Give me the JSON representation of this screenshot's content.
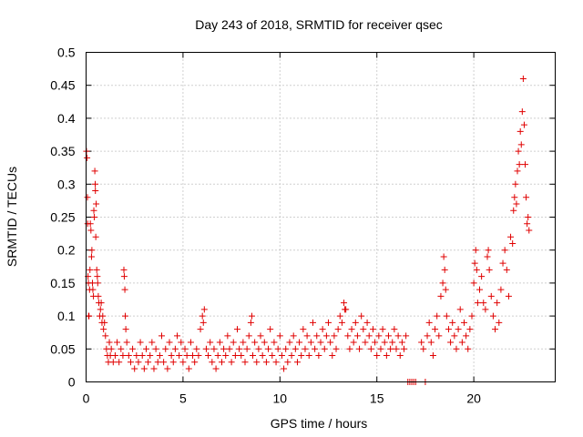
{
  "chart_data": {
    "type": "scatter",
    "title": "Day 243 of 2018, SRMTID for receiver qsec",
    "xlabel": "GPS time / hours",
    "ylabel": "SRMTID / TECUs",
    "xlim": [
      0,
      24.2
    ],
    "ylim": [
      0,
      0.5
    ],
    "xticks": [
      0,
      5,
      10,
      15,
      20
    ],
    "xtick_labels": [
      "0",
      "5",
      "10",
      "15",
      "20"
    ],
    "yticks": [
      0,
      0.05,
      0.1,
      0.15,
      0.2,
      0.25,
      0.3,
      0.35,
      0.4,
      0.45,
      0.5
    ],
    "ytick_labels": [
      "0",
      "0.05",
      "0.1",
      "0.15",
      "0.2",
      "0.25",
      "0.3",
      "0.35",
      "0.4",
      "0.45",
      "0.5"
    ],
    "grid": true,
    "marker": "+",
    "color": "#e00000",
    "series": [
      {
        "name": "SRMTID",
        "points": [
          [
            0.02,
            0.35
          ],
          [
            0.05,
            0.34
          ],
          [
            0.07,
            0.28
          ],
          [
            0.08,
            0.24
          ],
          [
            0.1,
            0.16
          ],
          [
            0.12,
            0.15
          ],
          [
            0.13,
            0.1
          ],
          [
            0.15,
            0.1
          ],
          [
            0.18,
            0.14
          ],
          [
            0.2,
            0.17
          ],
          [
            0.22,
            0.24
          ],
          [
            0.25,
            0.23
          ],
          [
            0.28,
            0.19
          ],
          [
            0.3,
            0.2
          ],
          [
            0.33,
            0.15
          ],
          [
            0.35,
            0.14
          ],
          [
            0.38,
            0.13
          ],
          [
            0.4,
            0.26
          ],
          [
            0.42,
            0.25
          ],
          [
            0.45,
            0.32
          ],
          [
            0.47,
            0.3
          ],
          [
            0.48,
            0.29
          ],
          [
            0.5,
            0.22
          ],
          [
            0.52,
            0.27
          ],
          [
            0.55,
            0.17
          ],
          [
            0.58,
            0.16
          ],
          [
            0.6,
            0.15
          ],
          [
            0.63,
            0.13
          ],
          [
            0.66,
            0.12
          ],
          [
            0.7,
            0.1
          ],
          [
            0.74,
            0.11
          ],
          [
            0.78,
            0.12
          ],
          [
            0.82,
            0.09
          ],
          [
            0.86,
            0.1
          ],
          [
            0.9,
            0.08
          ],
          [
            0.95,
            0.09
          ],
          [
            1.0,
            0.07
          ],
          [
            1.05,
            0.05
          ],
          [
            1.1,
            0.04
          ],
          [
            1.15,
            0.03
          ],
          [
            1.2,
            0.06
          ],
          [
            1.25,
            0.04
          ],
          [
            1.3,
            0.05
          ],
          [
            1.4,
            0.03
          ],
          [
            1.5,
            0.04
          ],
          [
            1.6,
            0.06
          ],
          [
            1.7,
            0.03
          ],
          [
            1.8,
            0.05
          ],
          [
            1.9,
            0.04
          ],
          [
            1.95,
            0.17
          ],
          [
            1.97,
            0.16
          ],
          [
            2.0,
            0.14
          ],
          [
            2.02,
            0.1
          ],
          [
            2.05,
            0.08
          ],
          [
            2.1,
            0.06
          ],
          [
            2.2,
            0.04
          ],
          [
            2.3,
            0.03
          ],
          [
            2.4,
            0.05
          ],
          [
            2.5,
            0.02
          ],
          [
            2.6,
            0.04
          ],
          [
            2.7,
            0.03
          ],
          [
            2.8,
            0.06
          ],
          [
            2.9,
            0.04
          ],
          [
            3.0,
            0.02
          ],
          [
            3.1,
            0.05
          ],
          [
            3.2,
            0.03
          ],
          [
            3.3,
            0.04
          ],
          [
            3.4,
            0.06
          ],
          [
            3.5,
            0.02
          ],
          [
            3.6,
            0.05
          ],
          [
            3.7,
            0.03
          ],
          [
            3.8,
            0.04
          ],
          [
            3.9,
            0.07
          ],
          [
            4.0,
            0.03
          ],
          [
            4.1,
            0.05
          ],
          [
            4.2,
            0.02
          ],
          [
            4.3,
            0.06
          ],
          [
            4.4,
            0.04
          ],
          [
            4.5,
            0.03
          ],
          [
            4.6,
            0.05
          ],
          [
            4.7,
            0.07
          ],
          [
            4.8,
            0.04
          ],
          [
            4.9,
            0.06
          ],
          [
            5.0,
            0.03
          ],
          [
            5.1,
            0.05
          ],
          [
            5.2,
            0.04
          ],
          [
            5.3,
            0.02
          ],
          [
            5.4,
            0.06
          ],
          [
            5.5,
            0.04
          ],
          [
            5.6,
            0.03
          ],
          [
            5.7,
            0.05
          ],
          [
            5.8,
            0.04
          ],
          [
            5.9,
            0.08
          ],
          [
            6.0,
            0.1
          ],
          [
            6.05,
            0.09
          ],
          [
            6.1,
            0.11
          ],
          [
            6.2,
            0.05
          ],
          [
            6.3,
            0.04
          ],
          [
            6.4,
            0.06
          ],
          [
            6.5,
            0.03
          ],
          [
            6.6,
            0.05
          ],
          [
            6.7,
            0.02
          ],
          [
            6.8,
            0.04
          ],
          [
            6.9,
            0.06
          ],
          [
            7.0,
            0.03
          ],
          [
            7.1,
            0.05
          ],
          [
            7.2,
            0.04
          ],
          [
            7.3,
            0.07
          ],
          [
            7.4,
            0.05
          ],
          [
            7.5,
            0.03
          ],
          [
            7.6,
            0.06
          ],
          [
            7.7,
            0.04
          ],
          [
            7.8,
            0.08
          ],
          [
            7.9,
            0.05
          ],
          [
            8.0,
            0.04
          ],
          [
            8.1,
            0.06
          ],
          [
            8.2,
            0.03
          ],
          [
            8.3,
            0.05
          ],
          [
            8.4,
            0.07
          ],
          [
            8.5,
            0.09
          ],
          [
            8.55,
            0.1
          ],
          [
            8.6,
            0.04
          ],
          [
            8.7,
            0.06
          ],
          [
            8.8,
            0.03
          ],
          [
            8.9,
            0.05
          ],
          [
            9.0,
            0.07
          ],
          [
            9.1,
            0.04
          ],
          [
            9.2,
            0.06
          ],
          [
            9.3,
            0.03
          ],
          [
            9.4,
            0.05
          ],
          [
            9.5,
            0.08
          ],
          [
            9.6,
            0.04
          ],
          [
            9.7,
            0.06
          ],
          [
            9.8,
            0.03
          ],
          [
            9.9,
            0.05
          ],
          [
            10.0,
            0.07
          ],
          [
            10.1,
            0.04
          ],
          [
            10.2,
            0.02
          ],
          [
            10.3,
            0.05
          ],
          [
            10.4,
            0.03
          ],
          [
            10.5,
            0.06
          ],
          [
            10.6,
            0.04
          ],
          [
            10.7,
            0.07
          ],
          [
            10.8,
            0.05
          ],
          [
            10.9,
            0.03
          ],
          [
            11.0,
            0.06
          ],
          [
            11.1,
            0.04
          ],
          [
            11.2,
            0.08
          ],
          [
            11.3,
            0.05
          ],
          [
            11.4,
            0.07
          ],
          [
            11.5,
            0.04
          ],
          [
            11.6,
            0.06
          ],
          [
            11.7,
            0.09
          ],
          [
            11.8,
            0.05
          ],
          [
            11.9,
            0.07
          ],
          [
            12.0,
            0.04
          ],
          [
            12.1,
            0.06
          ],
          [
            12.2,
            0.08
          ],
          [
            12.3,
            0.05
          ],
          [
            12.4,
            0.07
          ],
          [
            12.5,
            0.09
          ],
          [
            12.6,
            0.06
          ],
          [
            12.7,
            0.04
          ],
          [
            12.8,
            0.07
          ],
          [
            12.9,
            0.05
          ],
          [
            13.0,
            0.08
          ],
          [
            13.1,
            0.1
          ],
          [
            13.2,
            0.09
          ],
          [
            13.3,
            0.12
          ],
          [
            13.35,
            0.11
          ],
          [
            13.4,
            0.11
          ],
          [
            13.5,
            0.07
          ],
          [
            13.6,
            0.05
          ],
          [
            13.7,
            0.08
          ],
          [
            13.8,
            0.06
          ],
          [
            13.9,
            0.09
          ],
          [
            14.0,
            0.07
          ],
          [
            14.1,
            0.05
          ],
          [
            14.2,
            0.1
          ],
          [
            14.3,
            0.08
          ],
          [
            14.4,
            0.06
          ],
          [
            14.5,
            0.09
          ],
          [
            14.6,
            0.07
          ],
          [
            14.7,
            0.05
          ],
          [
            14.8,
            0.08
          ],
          [
            14.9,
            0.06
          ],
          [
            15.0,
            0.04
          ],
          [
            15.1,
            0.07
          ],
          [
            15.2,
            0.05
          ],
          [
            15.3,
            0.08
          ],
          [
            15.4,
            0.06
          ],
          [
            15.5,
            0.04
          ],
          [
            15.6,
            0.07
          ],
          [
            15.7,
            0.05
          ],
          [
            15.8,
            0.06
          ],
          [
            15.9,
            0.08
          ],
          [
            16.0,
            0.05
          ],
          [
            16.1,
            0.07
          ],
          [
            16.2,
            0.04
          ],
          [
            16.3,
            0.06
          ],
          [
            16.4,
            0.05
          ],
          [
            16.5,
            0.07
          ],
          [
            16.6,
            0.0
          ],
          [
            16.7,
            0.0
          ],
          [
            16.8,
            0.0
          ],
          [
            16.9,
            0.0
          ],
          [
            17.0,
            0.0
          ],
          [
            17.3,
            0.06
          ],
          [
            17.4,
            0.05
          ],
          [
            17.5,
            0.0
          ],
          [
            17.6,
            0.07
          ],
          [
            17.7,
            0.09
          ],
          [
            17.8,
            0.06
          ],
          [
            17.9,
            0.04
          ],
          [
            18.0,
            0.08
          ],
          [
            18.1,
            0.1
          ],
          [
            18.2,
            0.07
          ],
          [
            18.3,
            0.13
          ],
          [
            18.4,
            0.15
          ],
          [
            18.45,
            0.19
          ],
          [
            18.5,
            0.17
          ],
          [
            18.55,
            0.14
          ],
          [
            18.6,
            0.1
          ],
          [
            18.7,
            0.08
          ],
          [
            18.8,
            0.06
          ],
          [
            18.9,
            0.09
          ],
          [
            19.0,
            0.07
          ],
          [
            19.1,
            0.05
          ],
          [
            19.2,
            0.08
          ],
          [
            19.3,
            0.11
          ],
          [
            19.4,
            0.06
          ],
          [
            19.5,
            0.09
          ],
          [
            19.6,
            0.07
          ],
          [
            19.7,
            0.05
          ],
          [
            19.8,
            0.08
          ],
          [
            19.9,
            0.1
          ],
          [
            20.0,
            0.15
          ],
          [
            20.05,
            0.18
          ],
          [
            20.1,
            0.2
          ],
          [
            20.15,
            0.17
          ],
          [
            20.2,
            0.12
          ],
          [
            20.3,
            0.14
          ],
          [
            20.4,
            0.16
          ],
          [
            20.5,
            0.12
          ],
          [
            20.6,
            0.11
          ],
          [
            20.7,
            0.19
          ],
          [
            20.75,
            0.2
          ],
          [
            20.8,
            0.17
          ],
          [
            20.9,
            0.13
          ],
          [
            21.0,
            0.1
          ],
          [
            21.1,
            0.08
          ],
          [
            21.2,
            0.12
          ],
          [
            21.3,
            0.09
          ],
          [
            21.4,
            0.14
          ],
          [
            21.5,
            0.18
          ],
          [
            21.6,
            0.2
          ],
          [
            21.7,
            0.17
          ],
          [
            21.8,
            0.13
          ],
          [
            21.9,
            0.22
          ],
          [
            22.0,
            0.21
          ],
          [
            22.05,
            0.26
          ],
          [
            22.1,
            0.28
          ],
          [
            22.15,
            0.3
          ],
          [
            22.2,
            0.27
          ],
          [
            22.25,
            0.32
          ],
          [
            22.3,
            0.35
          ],
          [
            22.35,
            0.33
          ],
          [
            22.4,
            0.38
          ],
          [
            22.45,
            0.36
          ],
          [
            22.5,
            0.41
          ],
          [
            22.55,
            0.46
          ],
          [
            22.6,
            0.39
          ],
          [
            22.65,
            0.33
          ],
          [
            22.7,
            0.28
          ],
          [
            22.75,
            0.24
          ],
          [
            22.8,
            0.25
          ],
          [
            22.85,
            0.23
          ]
        ]
      }
    ]
  }
}
